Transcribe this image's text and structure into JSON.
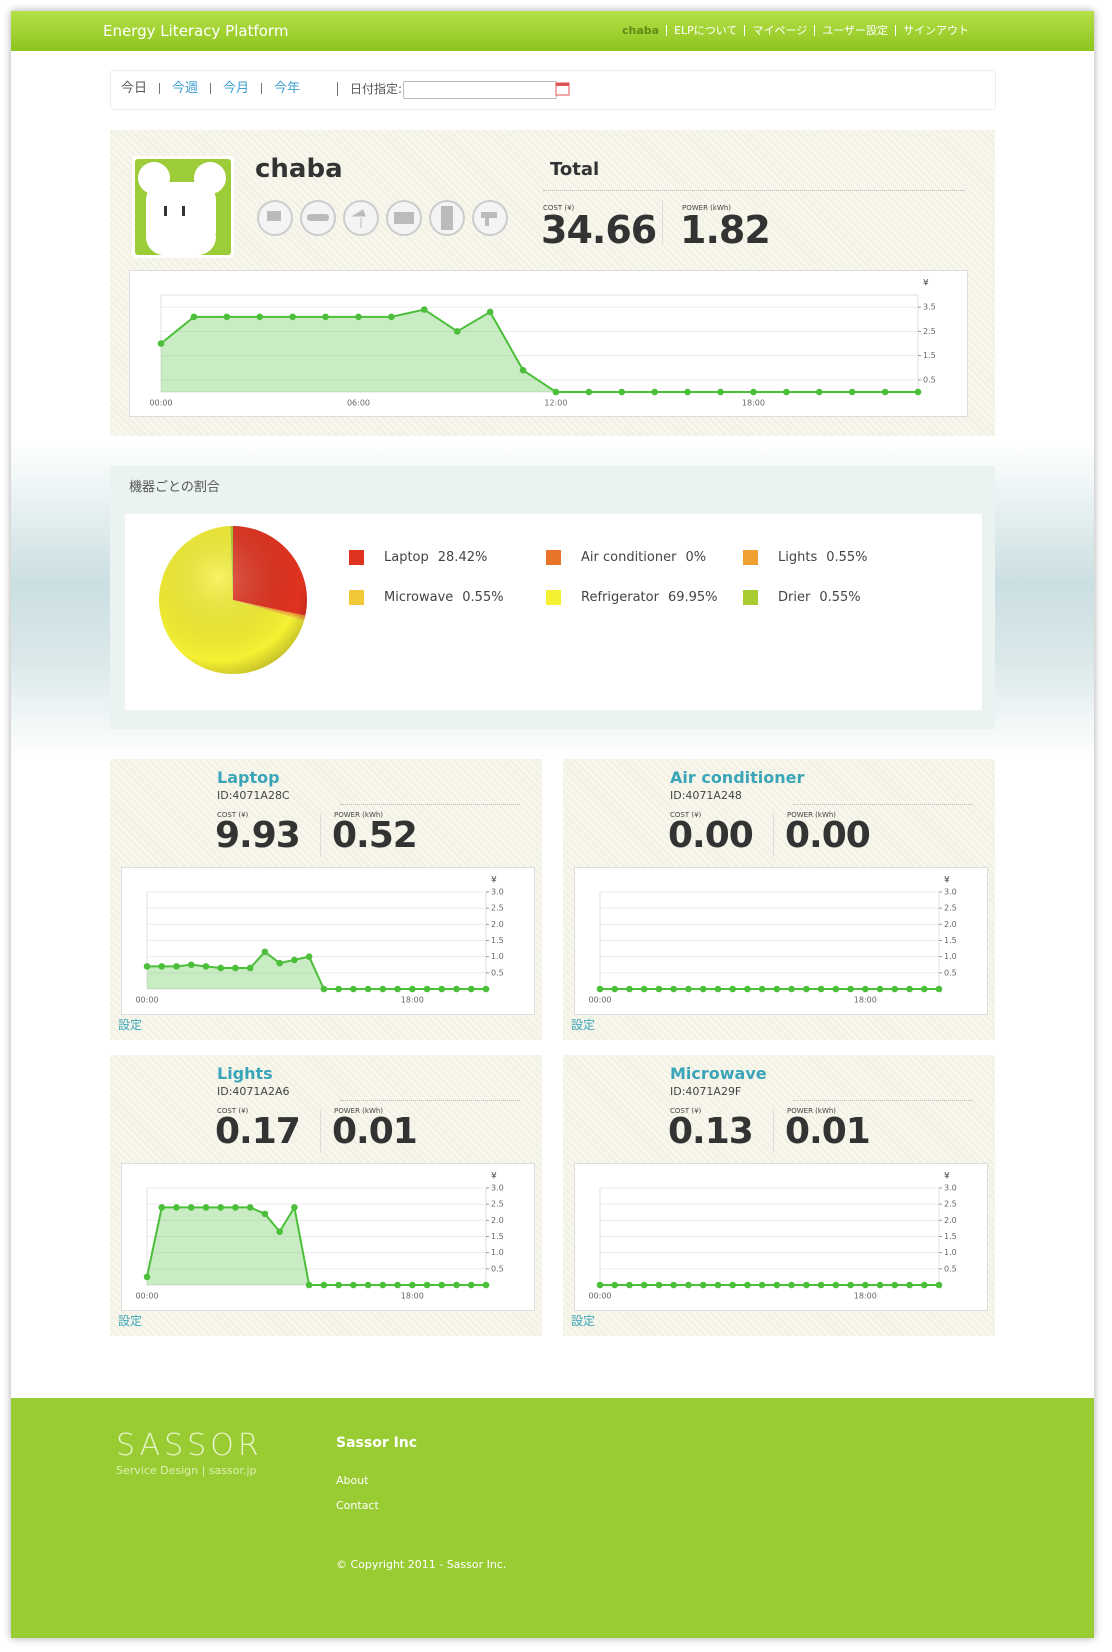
{
  "header": {
    "title": "Energy Literacy Platform",
    "nav": [
      "chaba",
      "ELPについて",
      "マイページ",
      "ユーザー設定",
      "サインアウト"
    ]
  },
  "period": {
    "tabs": [
      "今日",
      "今週",
      "今月",
      "今年"
    ],
    "date_label": "日付指定:"
  },
  "summary": {
    "user": "chaba",
    "total_label": "Total",
    "cost_label": "COST (¥)",
    "cost": 34.66,
    "power_label": "POWER (kWh)",
    "power": 1.82,
    "chart": {
      "type": "line",
      "color": "#4cbf3a",
      "y_label": "¥",
      "categories": [
        "00:00",
        null,
        null,
        null,
        null,
        null,
        "06:00",
        null,
        null,
        null,
        null,
        null,
        "12:00",
        null,
        null,
        null,
        null,
        null,
        "18:00",
        null,
        null,
        null,
        null,
        null
      ],
      "values": [
        2.0,
        3.1,
        3.1,
        3.1,
        3.1,
        3.1,
        3.1,
        3.1,
        3.4,
        2.5,
        3.3,
        0.9,
        0,
        0,
        0,
        0,
        0,
        0,
        0,
        0,
        0,
        0,
        0,
        0
      ],
      "ylim": [
        0,
        4
      ],
      "yticks": [
        0.5,
        1.5,
        2.5,
        3.5
      ]
    }
  },
  "share": {
    "title": "機器ごとの割合",
    "chart": {
      "type": "pie",
      "categories": [
        "Laptop",
        "Air conditioner",
        "Lights",
        "Microwave",
        "Refrigerator",
        "Drier"
      ],
      "values": [
        28.42,
        0,
        0.55,
        0.55,
        69.95,
        0.55
      ],
      "value_labels": [
        "28.42%",
        "0%",
        "0.55%",
        "0.55%",
        "69.95%",
        "0.55%"
      ],
      "colors": [
        "#e0331f",
        "#e8742a",
        "#f0a030",
        "#f0c838",
        "#f5f032",
        "#a8cc30"
      ]
    }
  },
  "devices": [
    {
      "name": "Laptop",
      "id": "ID:4071A28C",
      "cost_label": "COST (¥)",
      "cost": "9.93",
      "power_label": "POWER (kWh)",
      "power": "0.52",
      "settings": "設定",
      "chart": {
        "type": "line",
        "color": "#4cbf3a",
        "y_label": "¥",
        "categories": [
          "00:00",
          null,
          null,
          null,
          null,
          null,
          null,
          null,
          null,
          null,
          null,
          null,
          null,
          null,
          null,
          null,
          null,
          null,
          "18:00",
          null,
          null,
          null,
          null,
          null
        ],
        "values": [
          0.7,
          0.7,
          0.7,
          0.75,
          0.7,
          0.65,
          0.65,
          0.65,
          1.15,
          0.8,
          0.9,
          1.0,
          0,
          0,
          0,
          0,
          0,
          0,
          0,
          0,
          0,
          0,
          0,
          0
        ],
        "ylim": [
          0,
          3
        ],
        "yticks": [
          0.5,
          {
            "value": 1,
            "label": "1.0"
          },
          1.5,
          {
            "value": 2,
            "label": "2.0"
          },
          2.5,
          {
            "value": 3,
            "label": "3.0"
          }
        ]
      }
    },
    {
      "name": "Air conditioner",
      "id": "ID:4071A248",
      "cost_label": "COST (¥)",
      "cost": "0.00",
      "power_label": "POWER (kWh)",
      "power": "0.00",
      "settings": "設定",
      "chart": {
        "type": "line",
        "color": "#4cbf3a",
        "y_label": "¥",
        "categories": [
          "00:00",
          null,
          null,
          null,
          null,
          null,
          null,
          null,
          null,
          null,
          null,
          null,
          null,
          null,
          null,
          null,
          null,
          null,
          "18:00",
          null,
          null,
          null,
          null,
          null
        ],
        "values": [
          0,
          0,
          0,
          0,
          0,
          0,
          0,
          0,
          0,
          0,
          0,
          0,
          0,
          0,
          0,
          0,
          0,
          0,
          0,
          0,
          0,
          0,
          0,
          0
        ],
        "ylim": [
          0,
          3
        ],
        "yticks": [
          0.5,
          {
            "value": 1,
            "label": "1.0"
          },
          1.5,
          {
            "value": 2,
            "label": "2.0"
          },
          2.5,
          {
            "value": 3,
            "label": "3.0"
          }
        ]
      }
    },
    {
      "name": "Lights",
      "id": "ID:4071A2A6",
      "cost_label": "COST (¥)",
      "cost": "0.17",
      "power_label": "POWER (kWh)",
      "power": "0.01",
      "settings": "設定",
      "chart": {
        "type": "line",
        "color": "#4cbf3a",
        "y_label": "¥",
        "categories": [
          "00:00",
          null,
          null,
          null,
          null,
          null,
          null,
          null,
          null,
          null,
          null,
          null,
          null,
          null,
          null,
          null,
          null,
          null,
          "18:00",
          null,
          null,
          null,
          null,
          null
        ],
        "values": [
          0.25,
          2.4,
          2.4,
          2.4,
          2.4,
          2.4,
          2.4,
          2.4,
          2.2,
          1.65,
          2.4,
          0,
          0,
          0,
          0,
          0,
          0,
          0,
          0,
          0,
          0,
          0,
          0,
          0
        ],
        "ylim": [
          0,
          3
        ],
        "yticks": [
          0.5,
          {
            "value": 1,
            "label": "1.0"
          },
          1.5,
          {
            "value": 2,
            "label": "2.0"
          },
          2.5,
          {
            "value": 3,
            "label": "3.0"
          }
        ]
      }
    },
    {
      "name": "Microwave",
      "id": "ID:4071A29F",
      "cost_label": "COST (¥)",
      "cost": "0.13",
      "power_label": "POWER (kWh)",
      "power": "0.01",
      "settings": "設定",
      "chart": {
        "type": "line",
        "color": "#4cbf3a",
        "y_label": "¥",
        "categories": [
          "00:00",
          null,
          null,
          null,
          null,
          null,
          null,
          null,
          null,
          null,
          null,
          null,
          null,
          null,
          null,
          null,
          null,
          null,
          "18:00",
          null,
          null,
          null,
          null,
          null
        ],
        "values": [
          0,
          0,
          0,
          0,
          0,
          0,
          0,
          0,
          0,
          0,
          0,
          0,
          0,
          0,
          0,
          0,
          0,
          0,
          0,
          0,
          0,
          0,
          0,
          0
        ],
        "ylim": [
          0,
          3
        ],
        "yticks": [
          0.5,
          {
            "value": 1,
            "label": "1.0"
          },
          1.5,
          {
            "value": 2,
            "label": "2.0"
          },
          2.5,
          {
            "value": 3,
            "label": "3.0"
          }
        ]
      }
    }
  ],
  "footer": {
    "logo": "SASSOR",
    "tagline": "Service Design | sassor.jp",
    "company": "Sassor Inc",
    "links": [
      "About",
      "Contact"
    ],
    "copyright": "© Copyright 2011 - Sassor Inc."
  }
}
